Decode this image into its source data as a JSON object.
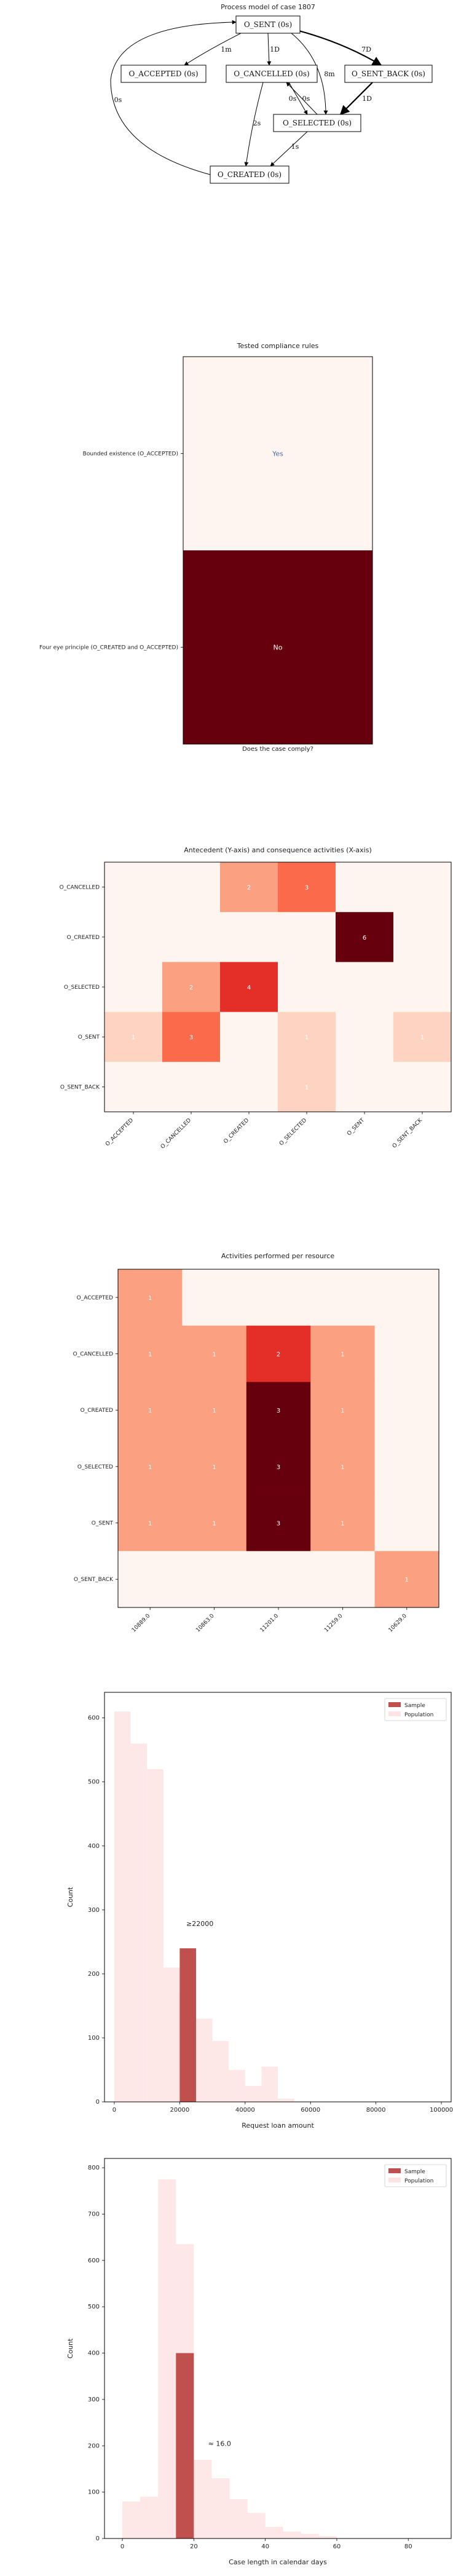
{
  "process_model": {
    "title": "Process model of case 1807",
    "nodes": [
      {
        "id": "sent",
        "label": "O_SENT (0s)"
      },
      {
        "id": "accepted",
        "label": "O_ACCEPTED (0s)"
      },
      {
        "id": "cancelled",
        "label": "O_CANCELLED (0s)"
      },
      {
        "id": "sent_back",
        "label": "O_SENT_BACK (0s)"
      },
      {
        "id": "selected",
        "label": "O_SELECTED (0s)"
      },
      {
        "id": "created",
        "label": "O_CREATED (0s)"
      }
    ],
    "edges": [
      {
        "from": "sent",
        "to": "accepted",
        "label": "1m"
      },
      {
        "from": "sent",
        "to": "cancelled",
        "label": "1D"
      },
      {
        "from": "sent",
        "to": "sent_back",
        "label": "7D"
      },
      {
        "from": "sent",
        "to": "selected",
        "label": "8m"
      },
      {
        "from": "cancelled",
        "to": "selected",
        "label": "0s"
      },
      {
        "from": "selected",
        "to": "cancelled",
        "label": "0s"
      },
      {
        "from": "sent_back",
        "to": "selected",
        "label": "1D"
      },
      {
        "from": "cancelled",
        "to": "created",
        "label": "2s"
      },
      {
        "from": "selected",
        "to": "created",
        "label": "1s"
      },
      {
        "from": "created",
        "to": "sent",
        "label": "0s"
      }
    ]
  },
  "compliance": {
    "chart_data": {
      "type": "heatmap",
      "title": "Tested compliance rules",
      "xlabel": "Does the case comply?",
      "rows": [
        "Bounded existence (O_ACCEPTED)",
        "Four eye principle (O_CREATED and O_ACCEPTED)"
      ],
      "values": [
        "Yes",
        "No"
      ],
      "colors": [
        "#fff5f0",
        "#67000d"
      ],
      "text_colors": [
        "#4a6fa5",
        "#ffffff"
      ]
    }
  },
  "antecedent": {
    "chart_data": {
      "type": "heatmap",
      "title": "Antecedent (Y-axis) and consequence activities (X-axis)",
      "rows": [
        "O_CANCELLED",
        "O_CREATED",
        "O_SELECTED",
        "O_SENT",
        "O_SENT_BACK"
      ],
      "columns": [
        "O_ACCEPTED",
        "O_CANCELLED",
        "O_CREATED",
        "O_SELECTED",
        "O_SENT",
        "O_SENT_BACK"
      ],
      "values": [
        [
          0,
          0,
          2,
          3,
          0,
          0
        ],
        [
          0,
          0,
          0,
          0,
          6,
          0
        ],
        [
          0,
          2,
          4,
          0,
          0,
          0
        ],
        [
          1,
          3,
          0,
          1,
          0,
          1
        ],
        [
          0,
          0,
          0,
          1,
          0,
          0
        ]
      ],
      "vmax": 6,
      "colormap": "Reds"
    }
  },
  "resource": {
    "chart_data": {
      "type": "heatmap",
      "title": "Activities performed per resource",
      "rows": [
        "O_ACCEPTED",
        "O_CANCELLED",
        "O_CREATED",
        "O_SELECTED",
        "O_SENT",
        "O_SENT_BACK"
      ],
      "columns": [
        "10889.0",
        "10863.0",
        "11201.0",
        "11259.0",
        "10629.0"
      ],
      "values": [
        [
          1,
          0,
          0,
          0,
          0
        ],
        [
          1,
          1,
          2,
          1,
          0
        ],
        [
          1,
          1,
          3,
          1,
          0
        ],
        [
          1,
          1,
          3,
          1,
          0
        ],
        [
          1,
          1,
          3,
          1,
          0
        ],
        [
          0,
          0,
          0,
          0,
          1
        ]
      ],
      "vmax": 3,
      "colormap": "Reds"
    }
  },
  "loan_hist": {
    "chart_data": {
      "type": "bar",
      "xlabel": "Request loan amount",
      "ylabel": "Count",
      "xlim": [
        -3000,
        103000
      ],
      "ylim": [
        0,
        640
      ],
      "xticks": [
        0,
        20000,
        40000,
        60000,
        80000,
        100000
      ],
      "yticks": [
        0,
        100,
        200,
        300,
        400,
        500,
        600
      ],
      "bin_width": 5000,
      "population": {
        "name": "Population",
        "bin_starts": [
          0,
          5000,
          10000,
          15000,
          20000,
          25000,
          30000,
          35000,
          40000,
          45000,
          50000
        ],
        "counts": [
          610,
          560,
          520,
          210,
          170,
          130,
          95,
          50,
          25,
          55,
          5
        ]
      },
      "sample": {
        "name": "Sample",
        "bin_starts": [
          20000
        ],
        "counts": [
          240
        ]
      },
      "annotation": "≥22000",
      "annotation_at": [
        22000,
        275
      ],
      "legend": "top-right"
    }
  },
  "length_hist": {
    "chart_data": {
      "type": "bar",
      "xlabel": "Case length in calendar days",
      "ylabel": "Count",
      "xlim": [
        -5,
        92
      ],
      "ylim": [
        0,
        820
      ],
      "xticks": [
        0,
        20,
        40,
        60,
        80
      ],
      "yticks": [
        0,
        100,
        200,
        300,
        400,
        500,
        600,
        700,
        800
      ],
      "bin_width": 5,
      "population": {
        "name": "Population",
        "bin_starts": [
          0,
          5,
          10,
          15,
          20,
          25,
          30,
          35,
          40,
          45,
          50,
          55
        ],
        "counts": [
          80,
          90,
          775,
          635,
          170,
          130,
          85,
          55,
          25,
          15,
          10,
          5
        ]
      },
      "sample": {
        "name": "Sample",
        "bin_starts": [
          15
        ],
        "counts": [
          400
        ]
      },
      "annotation": "≈ 16.0",
      "annotation_at": [
        24,
        200
      ],
      "legend": "top-right"
    }
  }
}
